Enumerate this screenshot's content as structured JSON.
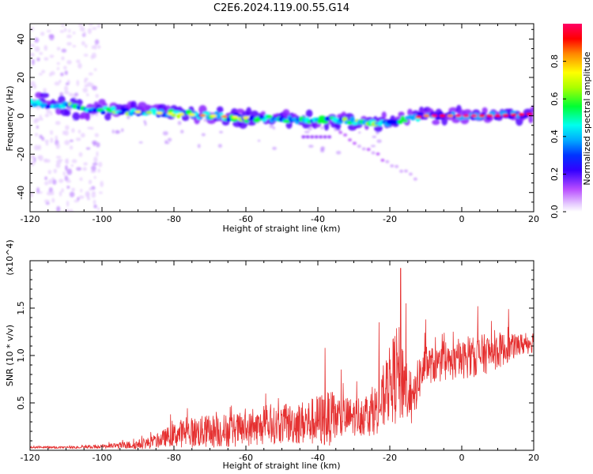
{
  "title": "C2E6.2024.119.00.55.G14",
  "chart_data": [
    {
      "type": "heatmap",
      "xlabel": "Height of straight line (km)",
      "ylabel": "Frequency (Hz)",
      "xlim": [
        -120,
        20
      ],
      "ylim": [
        -50,
        48
      ],
      "x_ticks": [
        "-120",
        "-100",
        "-80",
        "-60",
        "-40",
        "-20",
        "0",
        "20"
      ],
      "y_ticks": [
        "40",
        "20",
        "0",
        "-20",
        "-40"
      ],
      "colorbar": {
        "label": "Normalized spectral amplitude",
        "range": [
          0,
          1
        ],
        "ticks": [
          "0.0",
          "0.2",
          "0.4",
          "0.6",
          "0.8"
        ]
      },
      "ridge": {
        "description_values": "dominant frequency band vs height",
        "x": [
          -120,
          -110,
          -100,
          -90,
          -80,
          -70,
          -60,
          -50,
          -40,
          -30,
          -20,
          -10,
          0,
          10,
          20
        ],
        "y": [
          7,
          5,
          3,
          2,
          1,
          0,
          -1,
          -2,
          -2,
          -3,
          -3,
          0,
          0,
          0,
          1
        ]
      },
      "colors": [
        "#ffffff",
        "#e6ccff",
        "#b84dff",
        "#5200ff",
        "#0000ff",
        "#00aaff",
        "#00ffee",
        "#00ff33",
        "#aaff00",
        "#ffff00",
        "#ff8800",
        "#ff0000",
        "#ff0066"
      ]
    },
    {
      "type": "line",
      "xlabel": "Height of straight line (km)",
      "ylabel": "SNR (10 * v/v)",
      "y_multiplier": "(x10^4)",
      "xlim": [
        -120,
        20
      ],
      "ylim": [
        0,
        2.0
      ],
      "x_ticks": [
        "-120",
        "-100",
        "-80",
        "-60",
        "-40",
        "-20",
        "0",
        "20"
      ],
      "y_ticks": [
        "1.5",
        "1.0",
        "0.5"
      ],
      "line_color": "#e53030",
      "envelope": {
        "x": [
          -120,
          -110,
          -100,
          -90,
          -85,
          -82,
          -78,
          -70,
          -60,
          -50,
          -42,
          -38,
          -30,
          -25,
          -22,
          -20,
          -18,
          -16,
          -14,
          -12,
          -10,
          -5,
          0,
          5,
          10,
          15,
          20
        ],
        "base": [
          0.03,
          0.03,
          0.04,
          0.06,
          0.09,
          0.14,
          0.18,
          0.2,
          0.22,
          0.27,
          0.3,
          0.33,
          0.35,
          0.4,
          0.5,
          0.7,
          0.8,
          0.75,
          0.45,
          0.75,
          0.9,
          0.9,
          0.95,
          1.0,
          1.05,
          1.1,
          1.15
        ],
        "amp": [
          0.01,
          0.01,
          0.02,
          0.05,
          0.07,
          0.1,
          0.15,
          0.18,
          0.18,
          0.2,
          0.25,
          0.3,
          0.2,
          0.25,
          0.3,
          0.4,
          0.55,
          0.45,
          0.2,
          0.25,
          0.2,
          0.18,
          0.2,
          0.22,
          0.2,
          0.12,
          0.12
        ]
      },
      "peaks": [
        {
          "x": -38,
          "y": 1.08
        },
        {
          "x": -23,
          "y": 1.35
        },
        {
          "x": -17,
          "y": 1.92
        },
        {
          "x": -15.5,
          "y": 1.55
        },
        {
          "x": -10,
          "y": 1.38
        },
        {
          "x": 4.5,
          "y": 1.52
        },
        {
          "x": 13,
          "y": 1.49
        }
      ]
    }
  ]
}
